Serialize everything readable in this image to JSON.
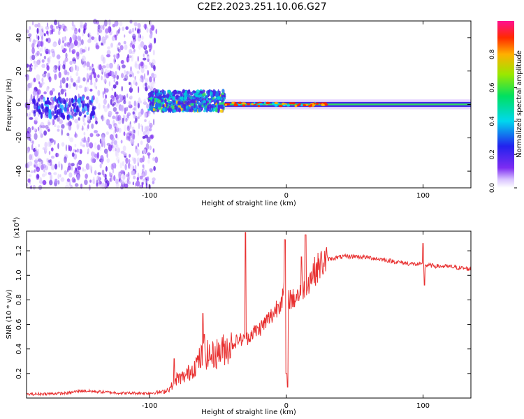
{
  "title": "C2E2.2023.251.10.06.G27",
  "colors": {
    "snr_line": "#e83030",
    "axis": "#000000",
    "centerline": "#55ccff"
  },
  "chart_data": [
    {
      "type": "heatmap",
      "name": "spectrogram",
      "xlabel": "Height of straight line (km)",
      "ylabel": "Frequency (Hz)",
      "xlim": [
        -190,
        135
      ],
      "ylim": [
        -50,
        50
      ],
      "x_ticks": [
        -100,
        0,
        100
      ],
      "y_ticks": [
        40,
        20,
        0,
        -20,
        -40
      ],
      "colorbar": {
        "label": "Normalized spectral amplitude",
        "ticks": [
          "0.0",
          "0.2",
          "0.4",
          "0.6",
          "0.8"
        ],
        "range": [
          0,
          1
        ]
      },
      "regions": [
        {
          "x": [
            -190,
            -95
          ],
          "freq_spread": 50,
          "amplitude": "low, noisy"
        },
        {
          "x": [
            -100,
            -45
          ],
          "freq_center": 2,
          "freq_halfwidth": 6,
          "amplitude": "medium"
        },
        {
          "x": [
            -45,
            135
          ],
          "freq_center": 0,
          "freq_halfwidth": 3,
          "amplitude": "high, narrow line"
        }
      ]
    },
    {
      "type": "line",
      "name": "snr",
      "xlabel": "Height of straight line (km)",
      "ylabel": "SNR (10 * v/v)",
      "y_multiplier": "(x10",
      "y_multiplier_exp": "4",
      "y_multiplier_close": ")",
      "xlim": [
        -190,
        135
      ],
      "ylim": [
        0,
        13600
      ],
      "x_ticks": [
        -100,
        0,
        100
      ],
      "y_ticks": [
        "0.2",
        "0.4",
        "0.6",
        "0.8",
        "1.0",
        "1.2"
      ],
      "y_tick_values": [
        2000,
        4000,
        6000,
        8000,
        10000,
        12000
      ],
      "series": [
        {
          "name": "SNR",
          "x": [
            -190,
            -160,
            -150,
            -120,
            -100,
            -90,
            -85,
            -80,
            -75,
            -70,
            -65,
            -60,
            -55,
            -50,
            -45,
            -40,
            -35,
            -30,
            -25,
            -20,
            -15,
            -10,
            -5,
            -2,
            0,
            2,
            5,
            10,
            15,
            20,
            25,
            30,
            40,
            50,
            60,
            70,
            80,
            90,
            100,
            110,
            120,
            135
          ],
          "y": [
            300,
            400,
            600,
            400,
            400,
            500,
            800,
            1600,
            1700,
            2200,
            2900,
            3600,
            3400,
            3700,
            4000,
            4300,
            4800,
            4700,
            5300,
            5600,
            6200,
            6800,
            7800,
            8400,
            9000,
            8200,
            8000,
            8700,
            9400,
            10200,
            10900,
            11300,
            11500,
            11550,
            11450,
            11300,
            11100,
            10950,
            10850,
            10750,
            10700,
            10500
          ]
        }
      ],
      "spikes": [
        {
          "x": -82,
          "y": 3200
        },
        {
          "x": -61,
          "y": 6900
        },
        {
          "x": -60,
          "y": 5200
        },
        {
          "x": -30,
          "y": 13500
        },
        {
          "x": -1,
          "y": 12900
        },
        {
          "x": 0,
          "y": 2000
        },
        {
          "x": 1,
          "y": 900
        },
        {
          "x": 11,
          "y": 11500
        },
        {
          "x": 14,
          "y": 13300
        },
        {
          "x": 100,
          "y": 12600
        },
        {
          "x": 101,
          "y": 9200
        }
      ]
    }
  ]
}
